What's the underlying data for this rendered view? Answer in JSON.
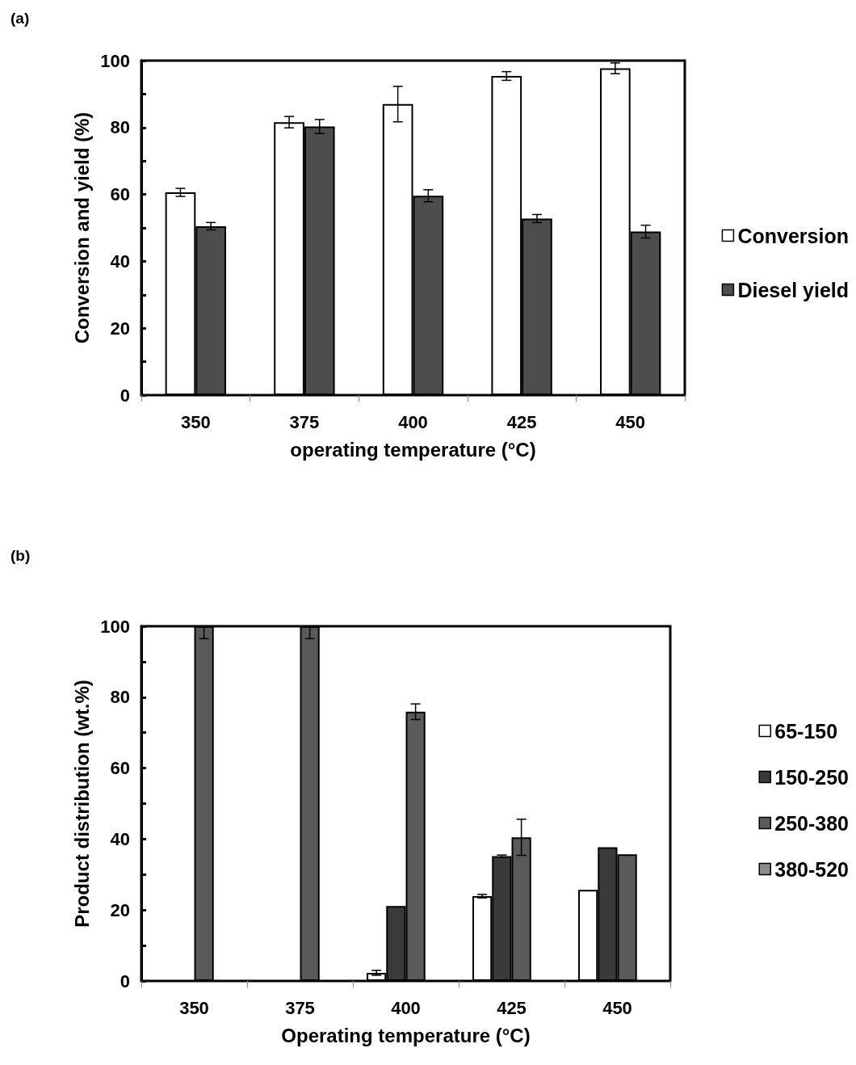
{
  "chart_data": [
    {
      "type": "bar",
      "title": "(a)",
      "xlabel": "operating temperature (°C)",
      "ylabel": "Conversion and yield (%)",
      "categories": [
        "350",
        "375",
        "400",
        "425",
        "450"
      ],
      "series": [
        {
          "name": "Conversion",
          "color": "#ffffff",
          "values": [
            60.6,
            81.6,
            87.0,
            95.4,
            97.7
          ],
          "errors": [
            1.2,
            1.7,
            5.3,
            1.3,
            1.6
          ]
        },
        {
          "name": "Diesel yield",
          "color": "#4d4d4d",
          "values": [
            50.5,
            80.3,
            59.6,
            52.8,
            48.9
          ],
          "errors": [
            1.1,
            2.1,
            1.8,
            1.2,
            1.9
          ]
        }
      ],
      "ylim": [
        0,
        100
      ],
      "yticks": [
        0,
        {
          "value": 10,
          "label": null
        },
        20,
        {
          "value": 30,
          "label": null
        },
        40,
        {
          "value": 50,
          "label": null
        },
        60,
        {
          "value": 70,
          "label": null
        },
        80,
        {
          "value": 90,
          "label": null
        },
        100
      ],
      "grid": false,
      "legend": "right"
    },
    {
      "type": "bar",
      "title": "(b)",
      "xlabel": "Operating temperature (°C)",
      "ylabel": "Product distribution (wt.%)",
      "categories": [
        "350",
        "375",
        "400",
        "425",
        "450"
      ],
      "series": [
        {
          "name": "65-150",
          "color": "#ffffff",
          "values": [
            null,
            null,
            2.3,
            23.9,
            25.7
          ],
          "errors": [
            null,
            null,
            0.7,
            0.5,
            null
          ]
        },
        {
          "name": "150-250",
          "color": "#3a3a3a",
          "values": [
            null,
            null,
            21.1,
            35.2,
            37.7
          ],
          "errors": [
            null,
            null,
            null,
            0.3,
            null
          ]
        },
        {
          "name": "250-380",
          "color": "#5a5a5a",
          "values": [
            100,
            100,
            75.9,
            40.5,
            35.7
          ],
          "errors": [
            [
              96.5,
              100
            ],
            [
              96.5,
              100
            ],
            2.2,
            5.1,
            null
          ]
        },
        {
          "name": "380-520",
          "color": "#8c8c8c",
          "values": [
            null,
            null,
            null,
            null,
            null
          ]
        }
      ],
      "ylim": [
        0,
        100
      ],
      "yticks": [
        0,
        {
          "value": 10,
          "label": null
        },
        20,
        {
          "value": 30,
          "label": null
        },
        40,
        {
          "value": 50,
          "label": null
        },
        60,
        {
          "value": 70,
          "label": null
        },
        80,
        {
          "value": 90,
          "label": null
        },
        100
      ],
      "grid": false,
      "legend": "right"
    }
  ]
}
